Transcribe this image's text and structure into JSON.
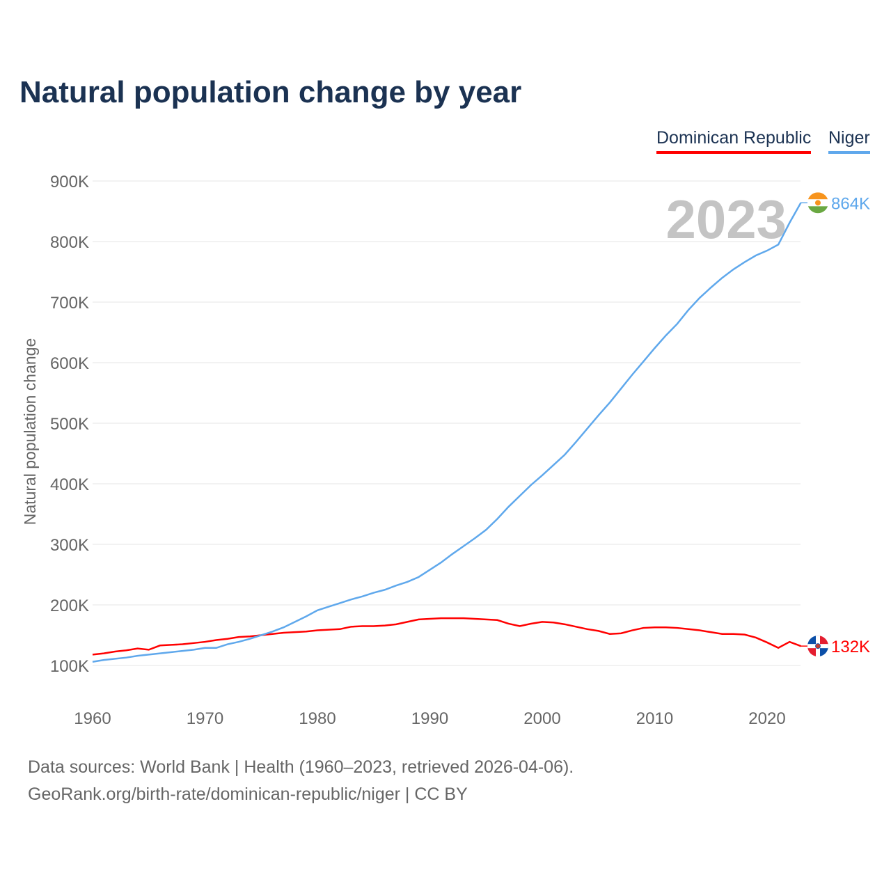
{
  "title": "Natural population change by year",
  "legend": [
    {
      "name": "Dominican Republic",
      "color": "#ff0000"
    },
    {
      "name": "Niger",
      "color": "#5fa8ec"
    }
  ],
  "year_label": "2023",
  "end_labels": {
    "niger": "864K",
    "dr": "132K"
  },
  "source_line1": "Data sources: World Bank | Health (1960–2023, retrieved 2026-04-06).",
  "source_line2": "GeoRank.org/birth-rate/dominican-republic/niger | CC BY",
  "chart_data": {
    "type": "line",
    "title": "Natural population change by year",
    "xlabel": "",
    "ylabel": "Natural population change",
    "ylim": [
      100000,
      900000
    ],
    "xlim": [
      1960,
      2023
    ],
    "yticks": [
      "100K",
      "200K",
      "300K",
      "400K",
      "500K",
      "600K",
      "700K",
      "800K",
      "900K"
    ],
    "xticks": [
      "1960",
      "1970",
      "1980",
      "1990",
      "2000",
      "2010",
      "2020"
    ],
    "x_start": 1960,
    "series": [
      {
        "name": "Dominican Republic",
        "color": "#ff0000",
        "values_k": [
          118,
          120,
          123,
          125,
          128,
          126,
          133,
          134,
          135,
          137,
          139,
          142,
          144,
          147,
          148,
          150,
          152,
          154,
          155,
          156,
          158,
          159,
          160,
          164,
          165,
          165,
          166,
          168,
          172,
          176,
          177,
          178,
          178,
          178,
          177,
          176,
          175,
          169,
          165,
          169,
          172,
          171,
          168,
          164,
          160,
          157,
          152,
          153,
          158,
          162,
          163,
          163,
          162,
          160,
          158,
          155,
          152,
          152,
          151,
          146,
          138,
          129,
          139,
          132
        ]
      },
      {
        "name": "Niger",
        "color": "#5fa8ec",
        "values_k": [
          106,
          109,
          111,
          113,
          116,
          118,
          120,
          122,
          124,
          126,
          129,
          129,
          135,
          139,
          144,
          150,
          156,
          163,
          172,
          181,
          191,
          197,
          203,
          209,
          214,
          220,
          225,
          232,
          238,
          246,
          258,
          270,
          284,
          297,
          310,
          324,
          342,
          362,
          380,
          398,
          414,
          431,
          448,
          469,
          491,
          513,
          534,
          557,
          580,
          602,
          624,
          645,
          664,
          687,
          707,
          724,
          740,
          754,
          766,
          777,
          785,
          795,
          831,
          864
        ]
      }
    ]
  }
}
